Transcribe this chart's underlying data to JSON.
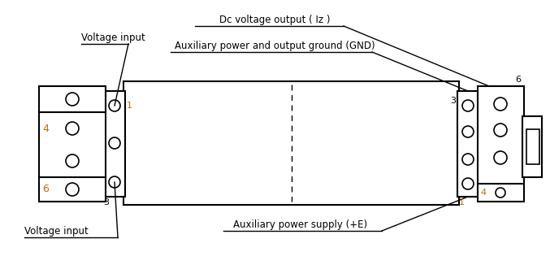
{
  "bg_color": "#ffffff",
  "line_color": "#000000",
  "orange_color": "#cc6600",
  "fig_width": 6.77,
  "fig_height": 3.42,
  "dpi": 100,
  "title_text": "Dc voltage output ( Iz )",
  "label_gnd": "Auxiliary power and output ground (GND)",
  "label_aux_power": "Auxiliary power supply (+E)",
  "label_voltage_input_top": "Voltage input",
  "label_voltage_input_bot": "Voltage input",
  "font_size_labels": 8.5,
  "font_size_numbers": 8
}
